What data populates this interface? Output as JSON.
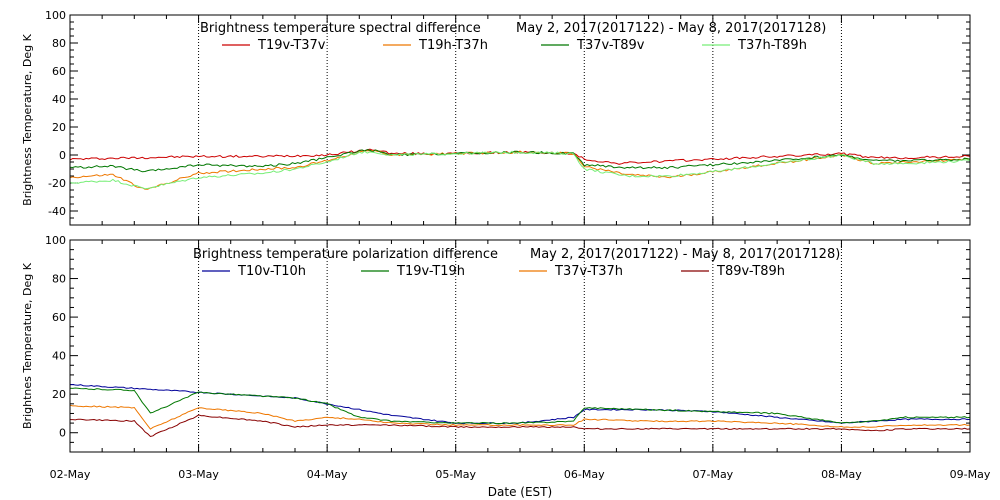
{
  "x_axis_label": "Date (EST)",
  "chart_data": [
    {
      "type": "line",
      "title": "Brightness temperature spectral difference",
      "date_range": "May  2, 2017(2017122) - May  8, 2017(2017128)",
      "xlabel": "Date (EST)",
      "ylabel": "Brightness Temperature, Deg K",
      "xlim": [
        "2017-05-02",
        "2017-05-09"
      ],
      "ylim": [
        -50,
        100
      ],
      "y_ticks": [
        -40,
        -20,
        0,
        20,
        40,
        60,
        80,
        100
      ],
      "x_ticks": [
        "02-May",
        "03-May",
        "04-May",
        "05-May",
        "06-May",
        "07-May",
        "08-May",
        "09-May"
      ],
      "vertical_grid": true,
      "series": [
        {
          "name": "T19v-T37v",
          "color": "#cc0000",
          "x": [
            "2017-05-02 00:00",
            "2017-05-02 12:00",
            "2017-05-03 00:00",
            "2017-05-03 12:00",
            "2017-05-04 00:00",
            "2017-05-04 06:00",
            "2017-05-04 09:00",
            "2017-05-04 12:00",
            "2017-05-05 00:00",
            "2017-05-05 12:00",
            "2017-05-05 22:00",
            "2017-05-06 00:00",
            "2017-05-06 06:00",
            "2017-05-06 12:00",
            "2017-05-06 18:00",
            "2017-05-07 00:00",
            "2017-05-07 12:00",
            "2017-05-08 00:00",
            "2017-05-08 06:00",
            "2017-05-08 12:00",
            "2017-05-09 00:00"
          ],
          "values": [
            -3,
            -2,
            -1,
            -1,
            0,
            3,
            4,
            1,
            1,
            2,
            1,
            -3,
            -6,
            -5,
            -4,
            -3,
            -1,
            1,
            -2,
            -2,
            -1
          ]
        },
        {
          "name": "T19h-T37h",
          "color": "#ee7700",
          "x": [
            "2017-05-02 00:00",
            "2017-05-02 08:00",
            "2017-05-02 14:00",
            "2017-05-03 00:00",
            "2017-05-03 12:00",
            "2017-05-03 18:00",
            "2017-05-04 00:00",
            "2017-05-04 06:00",
            "2017-05-04 09:00",
            "2017-05-04 12:00",
            "2017-05-05 00:00",
            "2017-05-05 12:00",
            "2017-05-05 22:00",
            "2017-05-06 00:00",
            "2017-05-06 08:00",
            "2017-05-06 16:00",
            "2017-05-07 00:00",
            "2017-05-07 12:00",
            "2017-05-08 00:00",
            "2017-05-08 06:00",
            "2017-05-08 12:00",
            "2017-05-09 00:00"
          ],
          "values": [
            -16,
            -14,
            -25,
            -13,
            -10,
            -9,
            -4,
            2,
            3,
            0,
            1,
            2,
            1,
            -8,
            -14,
            -16,
            -12,
            -6,
            0,
            -6,
            -5,
            -3
          ]
        },
        {
          "name": "T37v-T89v",
          "color": "#007700",
          "x": [
            "2017-05-02 00:00",
            "2017-05-02 08:00",
            "2017-05-02 14:00",
            "2017-05-03 00:00",
            "2017-05-03 12:00",
            "2017-05-03 18:00",
            "2017-05-04 00:00",
            "2017-05-04 06:00",
            "2017-05-04 09:00",
            "2017-05-04 12:00",
            "2017-05-05 00:00",
            "2017-05-05 12:00",
            "2017-05-05 22:00",
            "2017-05-06 00:00",
            "2017-05-06 08:00",
            "2017-05-06 16:00",
            "2017-05-07 00:00",
            "2017-05-07 12:00",
            "2017-05-08 00:00",
            "2017-05-08 06:00",
            "2017-05-08 12:00",
            "2017-05-09 00:00"
          ],
          "values": [
            -9,
            -8,
            -12,
            -7,
            -8,
            -6,
            -2,
            3,
            3,
            0,
            1,
            2,
            1,
            -7,
            -9,
            -9,
            -7,
            -4,
            0,
            -4,
            -4,
            -3
          ]
        },
        {
          "name": "T37h-T89h",
          "color": "#77ee77",
          "x": [
            "2017-05-02 00:00",
            "2017-05-02 08:00",
            "2017-05-02 14:00",
            "2017-05-03 00:00",
            "2017-05-03 12:00",
            "2017-05-03 18:00",
            "2017-05-04 00:00",
            "2017-05-04 06:00",
            "2017-05-04 09:00",
            "2017-05-04 12:00",
            "2017-05-05 00:00",
            "2017-05-05 12:00",
            "2017-05-05 22:00",
            "2017-05-06 00:00",
            "2017-05-06 08:00",
            "2017-05-06 16:00",
            "2017-05-07 00:00",
            "2017-05-07 12:00",
            "2017-05-08 00:00",
            "2017-05-08 06:00",
            "2017-05-08 12:00",
            "2017-05-09 00:00"
          ],
          "values": [
            -20,
            -18,
            -24,
            -16,
            -13,
            -10,
            -5,
            2,
            2,
            0,
            1,
            2,
            1,
            -10,
            -15,
            -15,
            -12,
            -6,
            0,
            -6,
            -6,
            -4
          ]
        }
      ]
    },
    {
      "type": "line",
      "title": "Brightness temperature polarization difference",
      "date_range": "May  2, 2017(2017122) - May  8, 2017(2017128)",
      "xlabel": "Date (EST)",
      "ylabel": "Brightnes Temperature, Deg K",
      "xlim": [
        "2017-05-02",
        "2017-05-09"
      ],
      "ylim": [
        -10,
        100
      ],
      "y_ticks": [
        0,
        20,
        40,
        60,
        80,
        100
      ],
      "x_ticks": [
        "02-May",
        "03-May",
        "04-May",
        "05-May",
        "06-May",
        "07-May",
        "08-May",
        "09-May"
      ],
      "vertical_grid": true,
      "series": [
        {
          "name": "T10v-T10h",
          "color": "#000099",
          "x": [
            "2017-05-02 00:00",
            "2017-05-02 12:00",
            "2017-05-03 00:00",
            "2017-05-03 12:00",
            "2017-05-03 18:00",
            "2017-05-04 00:00",
            "2017-05-04 06:00",
            "2017-05-04 12:00",
            "2017-05-05 00:00",
            "2017-05-05 12:00",
            "2017-05-05 22:00",
            "2017-05-06 00:00",
            "2017-05-06 12:00",
            "2017-05-07 00:00",
            "2017-05-07 12:00",
            "2017-05-08 00:00",
            "2017-05-08 06:00",
            "2017-05-08 12:00",
            "2017-05-09 00:00"
          ],
          "values": [
            25,
            23,
            21,
            19,
            18,
            15,
            12,
            9,
            5,
            5,
            8,
            12,
            12,
            11,
            8,
            5,
            6,
            7,
            7
          ]
        },
        {
          "name": "T19v-T19h",
          "color": "#007700",
          "x": [
            "2017-05-02 00:00",
            "2017-05-02 12:00",
            "2017-05-02 15:00",
            "2017-05-03 00:00",
            "2017-05-03 12:00",
            "2017-05-03 18:00",
            "2017-05-04 00:00",
            "2017-05-04 06:00",
            "2017-05-04 12:00",
            "2017-05-05 00:00",
            "2017-05-05 12:00",
            "2017-05-05 22:00",
            "2017-05-06 00:00",
            "2017-05-06 12:00",
            "2017-05-07 00:00",
            "2017-05-07 12:00",
            "2017-05-08 00:00",
            "2017-05-08 06:00",
            "2017-05-08 12:00",
            "2017-05-09 00:00"
          ],
          "values": [
            23,
            22,
            10,
            21,
            19,
            18,
            15,
            8,
            6,
            5,
            5,
            6,
            13,
            12,
            11,
            10,
            5,
            6,
            8,
            8
          ]
        },
        {
          "name": "T37v-T37h",
          "color": "#ee7700",
          "x": [
            "2017-05-02 00:00",
            "2017-05-02 12:00",
            "2017-05-02 15:00",
            "2017-05-03 00:00",
            "2017-05-03 12:00",
            "2017-05-03 18:00",
            "2017-05-04 00:00",
            "2017-05-04 06:00",
            "2017-05-04 12:00",
            "2017-05-05 00:00",
            "2017-05-05 12:00",
            "2017-05-05 22:00",
            "2017-05-06 00:00",
            "2017-05-06 12:00",
            "2017-05-07 00:00",
            "2017-05-07 12:00",
            "2017-05-08 00:00",
            "2017-05-08 06:00",
            "2017-05-08 12:00",
            "2017-05-09 00:00"
          ],
          "values": [
            14,
            13,
            2,
            13,
            10,
            6,
            8,
            7,
            5,
            4,
            4,
            4,
            7,
            6,
            6,
            5,
            3,
            3,
            4,
            4
          ]
        },
        {
          "name": "T89v-T89h",
          "color": "#880000",
          "x": [
            "2017-05-02 00:00",
            "2017-05-02 12:00",
            "2017-05-02 15:00",
            "2017-05-03 00:00",
            "2017-05-03 12:00",
            "2017-05-03 18:00",
            "2017-05-04 00:00",
            "2017-05-04 06:00",
            "2017-05-04 12:00",
            "2017-05-05 00:00",
            "2017-05-05 12:00",
            "2017-05-05 22:00",
            "2017-05-06 00:00",
            "2017-05-06 12:00",
            "2017-05-07 00:00",
            "2017-05-07 12:00",
            "2017-05-08 00:00",
            "2017-05-08 06:00",
            "2017-05-08 12:00",
            "2017-05-09 00:00"
          ],
          "values": [
            7,
            6,
            -2,
            9,
            6,
            3,
            4,
            4,
            4,
            3,
            3,
            3,
            2,
            2,
            2,
            2,
            2,
            1,
            2,
            2
          ]
        }
      ]
    }
  ]
}
